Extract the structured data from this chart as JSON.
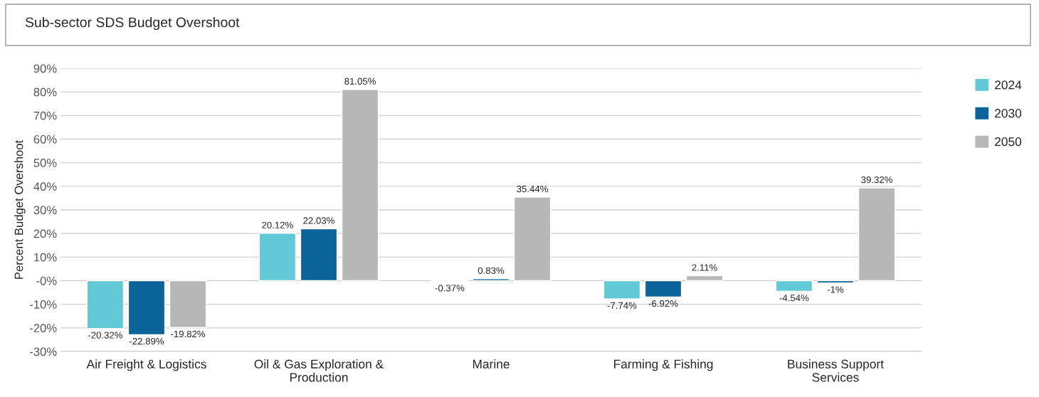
{
  "chart_data": {
    "type": "bar",
    "title": "Sub-sector SDS Budget Overshoot",
    "ylabel": "Percent Budget Overshoot",
    "categories": [
      "Air Freight & Logistics",
      "Oil & Gas Exploration & Production",
      "Marine",
      "Farming & Fishing",
      "Business Support Services"
    ],
    "series": [
      {
        "name": "2024",
        "color": "#62c9d6",
        "values": [
          -20.32,
          20.12,
          -0.37,
          -7.74,
          -4.54
        ],
        "value_labels": [
          "-20.32%",
          "20.12%",
          "-0.37%",
          "-7.74%",
          "-4.54%"
        ]
      },
      {
        "name": "2030",
        "color": "#0a6399",
        "values": [
          -22.89,
          22.03,
          0.83,
          -6.92,
          -1
        ],
        "value_labels": [
          "-22.89%",
          "22.03%",
          "0.83%",
          "-6.92%",
          "-1%"
        ]
      },
      {
        "name": "2050",
        "color": "#b8b8b8",
        "values": [
          -19.82,
          81.05,
          35.44,
          2.11,
          39.32
        ],
        "value_labels": [
          "-19.82%",
          "81.05%",
          "35.44%",
          "2.11%",
          "39.32%"
        ]
      }
    ],
    "ylim": [
      -30,
      90
    ],
    "yticks": [
      {
        "value": -30,
        "label": "-30%"
      },
      {
        "value": -20,
        "label": "-20%"
      },
      {
        "value": -10,
        "label": "-10%"
      },
      {
        "value": 0,
        "label": "-0%"
      },
      {
        "value": 10,
        "label": "10%"
      },
      {
        "value": 20,
        "label": "20%"
      },
      {
        "value": 30,
        "label": "30%"
      },
      {
        "value": 40,
        "label": "40%"
      },
      {
        "value": 50,
        "label": "50%"
      },
      {
        "value": 60,
        "label": "60%"
      },
      {
        "value": 70,
        "label": "70%"
      },
      {
        "value": 80,
        "label": "80%"
      },
      {
        "value": 90,
        "label": "90%"
      }
    ],
    "grid": "y",
    "legend": "right"
  }
}
